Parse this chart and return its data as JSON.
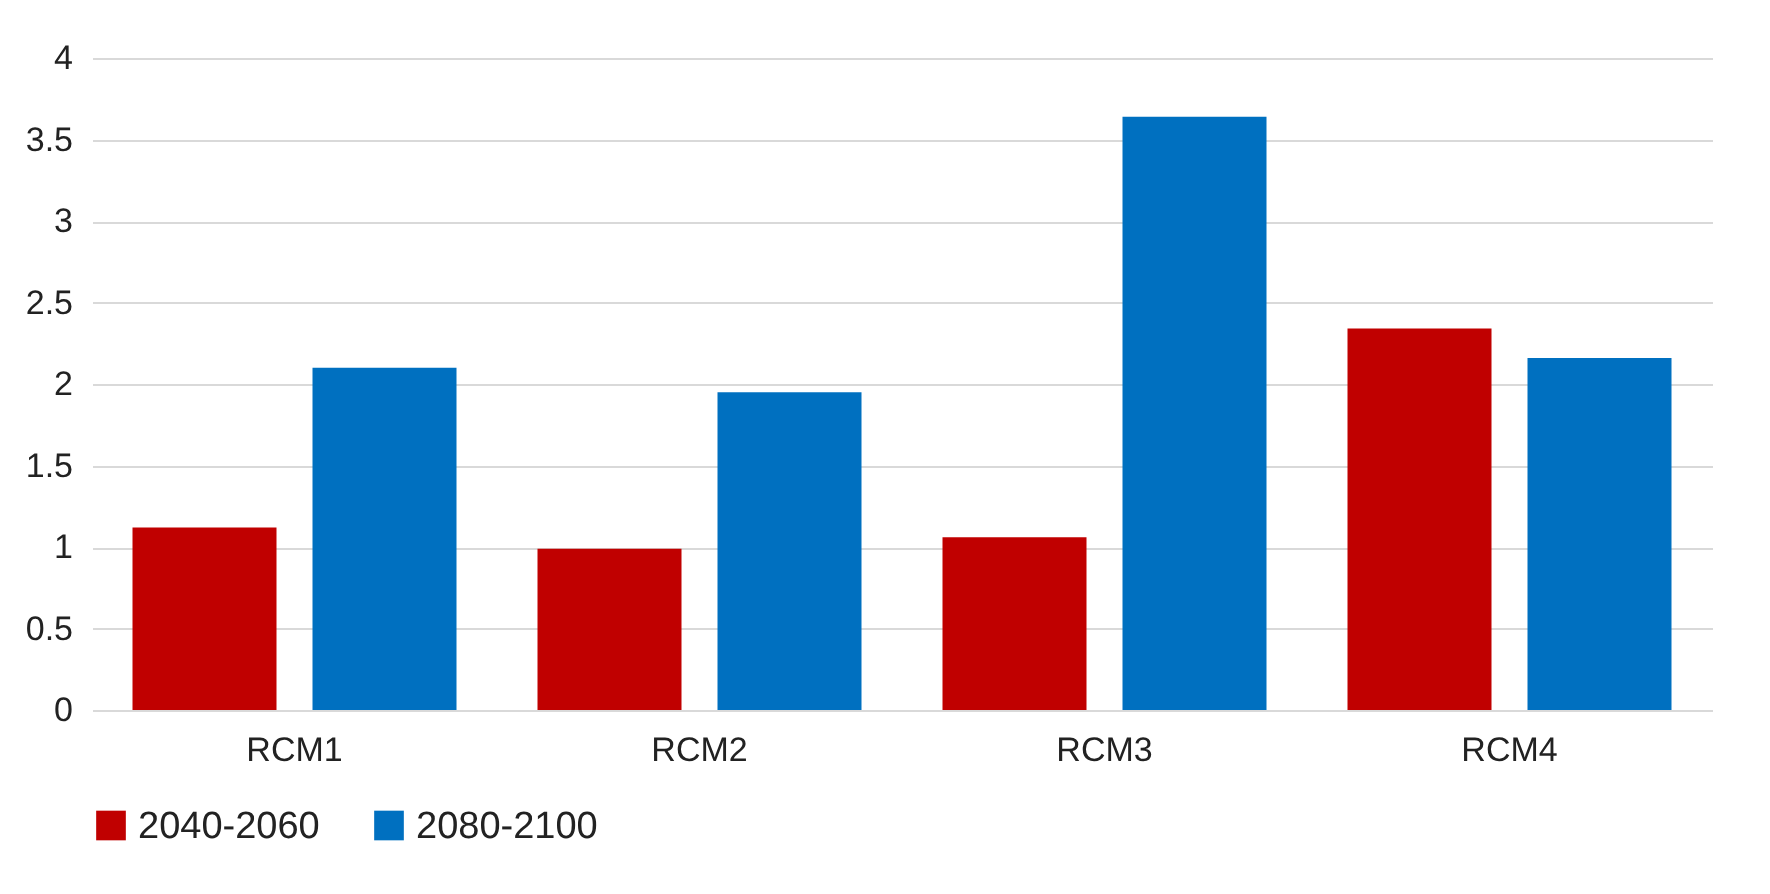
{
  "chart_data": {
    "type": "bar",
    "categories": [
      "RCM1",
      "RCM2",
      "RCM3",
      "RCM4"
    ],
    "series": [
      {
        "name": "2040-2060",
        "color": "#c00000",
        "values": [
          1.12,
          0.99,
          1.06,
          2.34
        ]
      },
      {
        "name": "2080-2100",
        "color": "#0070c0",
        "values": [
          2.1,
          1.95,
          3.64,
          2.16
        ]
      }
    ],
    "ylim": [
      0,
      4
    ],
    "yticks": [
      0,
      0.5,
      1,
      1.5,
      2,
      2.5,
      3,
      3.5,
      4
    ],
    "grid": "y",
    "legend": "bottom"
  }
}
